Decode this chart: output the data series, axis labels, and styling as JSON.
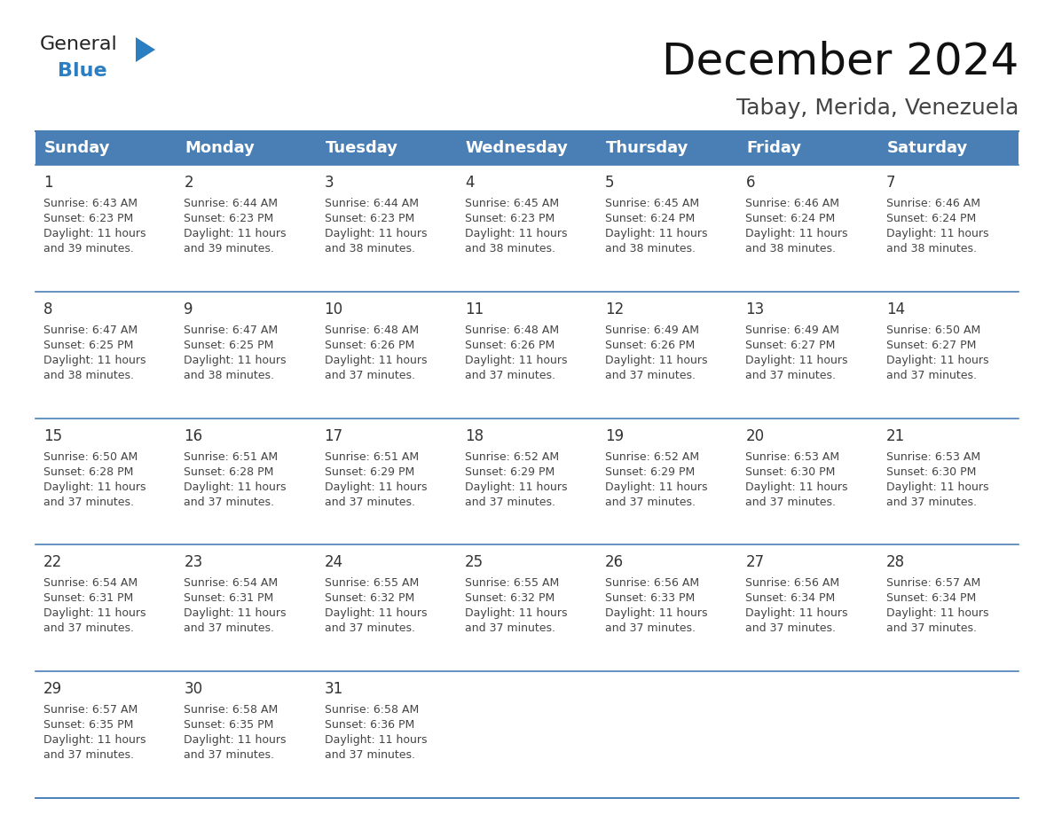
{
  "title": "December 2024",
  "subtitle": "Tabay, Merida, Venezuela",
  "header_bg_color": "#4a7fb5",
  "header_text_color": "#ffffff",
  "cell_border_color": "#4a7fb5",
  "day_num_color": "#333333",
  "cell_text_color": "#444444",
  "bg_color": "#ffffff",
  "days_of_week": [
    "Sunday",
    "Monday",
    "Tuesday",
    "Wednesday",
    "Thursday",
    "Friday",
    "Saturday"
  ],
  "weeks": [
    [
      {
        "day": 1,
        "sunrise": "6:43 AM",
        "sunset": "6:23 PM",
        "daylight": "11 hours and 39 minutes."
      },
      {
        "day": 2,
        "sunrise": "6:44 AM",
        "sunset": "6:23 PM",
        "daylight": "11 hours and 39 minutes."
      },
      {
        "day": 3,
        "sunrise": "6:44 AM",
        "sunset": "6:23 PM",
        "daylight": "11 hours and 38 minutes."
      },
      {
        "day": 4,
        "sunrise": "6:45 AM",
        "sunset": "6:23 PM",
        "daylight": "11 hours and 38 minutes."
      },
      {
        "day": 5,
        "sunrise": "6:45 AM",
        "sunset": "6:24 PM",
        "daylight": "11 hours and 38 minutes."
      },
      {
        "day": 6,
        "sunrise": "6:46 AM",
        "sunset": "6:24 PM",
        "daylight": "11 hours and 38 minutes."
      },
      {
        "day": 7,
        "sunrise": "6:46 AM",
        "sunset": "6:24 PM",
        "daylight": "11 hours and 38 minutes."
      }
    ],
    [
      {
        "day": 8,
        "sunrise": "6:47 AM",
        "sunset": "6:25 PM",
        "daylight": "11 hours and 38 minutes."
      },
      {
        "day": 9,
        "sunrise": "6:47 AM",
        "sunset": "6:25 PM",
        "daylight": "11 hours and 38 minutes."
      },
      {
        "day": 10,
        "sunrise": "6:48 AM",
        "sunset": "6:26 PM",
        "daylight": "11 hours and 37 minutes."
      },
      {
        "day": 11,
        "sunrise": "6:48 AM",
        "sunset": "6:26 PM",
        "daylight": "11 hours and 37 minutes."
      },
      {
        "day": 12,
        "sunrise": "6:49 AM",
        "sunset": "6:26 PM",
        "daylight": "11 hours and 37 minutes."
      },
      {
        "day": 13,
        "sunrise": "6:49 AM",
        "sunset": "6:27 PM",
        "daylight": "11 hours and 37 minutes."
      },
      {
        "day": 14,
        "sunrise": "6:50 AM",
        "sunset": "6:27 PM",
        "daylight": "11 hours and 37 minutes."
      }
    ],
    [
      {
        "day": 15,
        "sunrise": "6:50 AM",
        "sunset": "6:28 PM",
        "daylight": "11 hours and 37 minutes."
      },
      {
        "day": 16,
        "sunrise": "6:51 AM",
        "sunset": "6:28 PM",
        "daylight": "11 hours and 37 minutes."
      },
      {
        "day": 17,
        "sunrise": "6:51 AM",
        "sunset": "6:29 PM",
        "daylight": "11 hours and 37 minutes."
      },
      {
        "day": 18,
        "sunrise": "6:52 AM",
        "sunset": "6:29 PM",
        "daylight": "11 hours and 37 minutes."
      },
      {
        "day": 19,
        "sunrise": "6:52 AM",
        "sunset": "6:29 PM",
        "daylight": "11 hours and 37 minutes."
      },
      {
        "day": 20,
        "sunrise": "6:53 AM",
        "sunset": "6:30 PM",
        "daylight": "11 hours and 37 minutes."
      },
      {
        "day": 21,
        "sunrise": "6:53 AM",
        "sunset": "6:30 PM",
        "daylight": "11 hours and 37 minutes."
      }
    ],
    [
      {
        "day": 22,
        "sunrise": "6:54 AM",
        "sunset": "6:31 PM",
        "daylight": "11 hours and 37 minutes."
      },
      {
        "day": 23,
        "sunrise": "6:54 AM",
        "sunset": "6:31 PM",
        "daylight": "11 hours and 37 minutes."
      },
      {
        "day": 24,
        "sunrise": "6:55 AM",
        "sunset": "6:32 PM",
        "daylight": "11 hours and 37 minutes."
      },
      {
        "day": 25,
        "sunrise": "6:55 AM",
        "sunset": "6:32 PM",
        "daylight": "11 hours and 37 minutes."
      },
      {
        "day": 26,
        "sunrise": "6:56 AM",
        "sunset": "6:33 PM",
        "daylight": "11 hours and 37 minutes."
      },
      {
        "day": 27,
        "sunrise": "6:56 AM",
        "sunset": "6:34 PM",
        "daylight": "11 hours and 37 minutes."
      },
      {
        "day": 28,
        "sunrise": "6:57 AM",
        "sunset": "6:34 PM",
        "daylight": "11 hours and 37 minutes."
      }
    ],
    [
      {
        "day": 29,
        "sunrise": "6:57 AM",
        "sunset": "6:35 PM",
        "daylight": "11 hours and 37 minutes."
      },
      {
        "day": 30,
        "sunrise": "6:58 AM",
        "sunset": "6:35 PM",
        "daylight": "11 hours and 37 minutes."
      },
      {
        "day": 31,
        "sunrise": "6:58 AM",
        "sunset": "6:36 PM",
        "daylight": "11 hours and 37 minutes."
      },
      null,
      null,
      null,
      null
    ]
  ],
  "logo_color1": "#222222",
  "logo_color2": "#2b7ec1",
  "logo_triangle_color": "#2b7ec1",
  "title_fontsize": 36,
  "subtitle_fontsize": 18,
  "header_fontsize": 13,
  "day_num_fontsize": 12,
  "cell_fontsize": 9
}
